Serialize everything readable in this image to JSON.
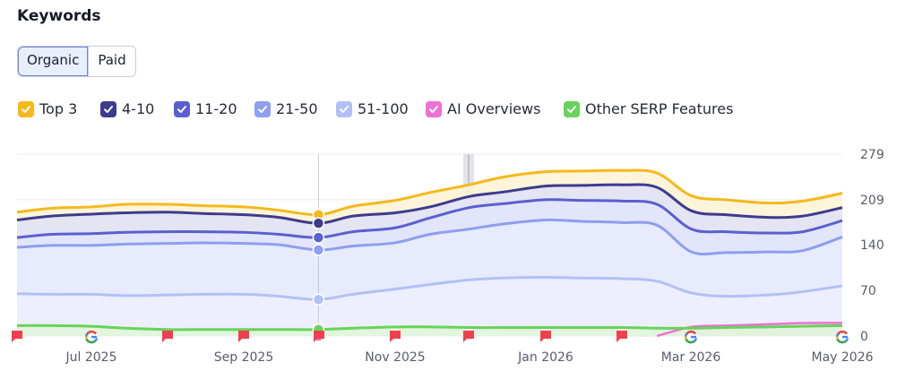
{
  "title": "Keywords",
  "tabs": [
    {
      "label": "Organic",
      "active": true
    },
    {
      "label": "Paid",
      "active": false
    }
  ],
  "legend": [
    {
      "label": "Top 3",
      "color": "#f6b81c"
    },
    {
      "label": "4-10",
      "color": "#3d3b8e"
    },
    {
      "label": "11-20",
      "color": "#5a5fd0"
    },
    {
      "label": "21-50",
      "color": "#8e9ef0"
    },
    {
      "label": "51-100",
      "color": "#b3c0f7"
    },
    {
      "label": "AI Overviews",
      "color": "#ee6fd6"
    },
    {
      "label": "Other SERP Features",
      "color": "#66d45a"
    }
  ],
  "chart_data": {
    "type": "area",
    "title": "",
    "xlabel": "",
    "ylabel": "",
    "ylim": [
      0,
      279
    ],
    "yticks": [
      "279",
      "209",
      "140",
      "70",
      "0"
    ],
    "xticks": [
      "Jul 2025",
      "Sep 2025",
      "Nov 2025",
      "Jan 2026",
      "Mar 2026",
      "May 2026"
    ],
    "x": [
      "2025-06-01",
      "2025-06-15",
      "2025-07-01",
      "2025-07-15",
      "2025-08-01",
      "2025-08-15",
      "2025-09-01",
      "2025-09-15",
      "2025-10-01",
      "2025-10-15",
      "2025-11-01",
      "2025-11-15",
      "2025-12-01",
      "2025-12-15",
      "2026-01-01",
      "2026-01-15",
      "2026-02-01",
      "2026-02-15",
      "2026-03-01",
      "2026-03-15",
      "2026-04-01",
      "2026-04-15",
      "2026-05-01"
    ],
    "series": [
      {
        "name": "Top 3",
        "color": "#f6b81c",
        "values": [
          190,
          196,
          198,
          202,
          202,
          200,
          198,
          193,
          186,
          199,
          208,
          220,
          232,
          244,
          252,
          253,
          254,
          250,
          215,
          209,
          204,
          207,
          219
        ]
      },
      {
        "name": "4-10",
        "color": "#3d3b8e",
        "values": [
          178,
          184,
          187,
          189,
          190,
          188,
          186,
          182,
          173,
          184,
          189,
          198,
          214,
          221,
          230,
          231,
          232,
          228,
          192,
          186,
          182,
          184,
          197
        ]
      },
      {
        "name": "11-20",
        "color": "#5a5fd0",
        "values": [
          151,
          156,
          157,
          159,
          160,
          160,
          159,
          156,
          151,
          160,
          166,
          181,
          197,
          203,
          209,
          208,
          207,
          202,
          164,
          160,
          158,
          160,
          177
        ]
      },
      {
        "name": "21-50",
        "color": "#8e9ef0",
        "values": [
          136,
          139,
          139,
          141,
          142,
          143,
          142,
          140,
          132,
          138,
          143,
          156,
          164,
          172,
          178,
          176,
          174,
          170,
          129,
          128,
          129,
          131,
          152
        ]
      },
      {
        "name": "51-100",
        "color": "#b3c0f7",
        "values": [
          65,
          64,
          64,
          62,
          63,
          64,
          64,
          61,
          56,
          64,
          72,
          79,
          86,
          89,
          90,
          89,
          88,
          84,
          66,
          61,
          63,
          68,
          77
        ]
      },
      {
        "name": "AI Overviews",
        "color": "#ee6fd6",
        "values": [
          0,
          0,
          0,
          0,
          0,
          0,
          0,
          0,
          0,
          0,
          0,
          0,
          0,
          0,
          0,
          0,
          0,
          0,
          14,
          16,
          18,
          20,
          20
        ]
      },
      {
        "name": "Other SERP Features",
        "color": "#66d45a",
        "values": [
          16,
          16,
          15,
          12,
          10,
          10,
          10,
          10,
          10,
          12,
          14,
          14,
          13,
          13,
          13,
          13,
          13,
          12,
          12,
          13,
          14,
          15,
          16
        ]
      }
    ],
    "hover_index": 8,
    "grid": true,
    "legend_position": "top",
    "markers": [
      {
        "type": "flag",
        "date": "2025-06-01"
      },
      {
        "type": "google",
        "date": "2025-06-30"
      },
      {
        "type": "flag",
        "date": "2025-07-31"
      },
      {
        "type": "flag",
        "date": "2025-08-31"
      },
      {
        "type": "flag",
        "date": "2025-10-01"
      },
      {
        "type": "flag",
        "date": "2025-10-31"
      },
      {
        "type": "flag",
        "date": "2025-11-30"
      },
      {
        "type": "flag",
        "date": "2025-12-31"
      },
      {
        "type": "flag",
        "date": "2026-01-31"
      },
      {
        "type": "google",
        "date": "2026-03-01"
      },
      {
        "type": "google",
        "date": "2026-05-01"
      }
    ]
  }
}
